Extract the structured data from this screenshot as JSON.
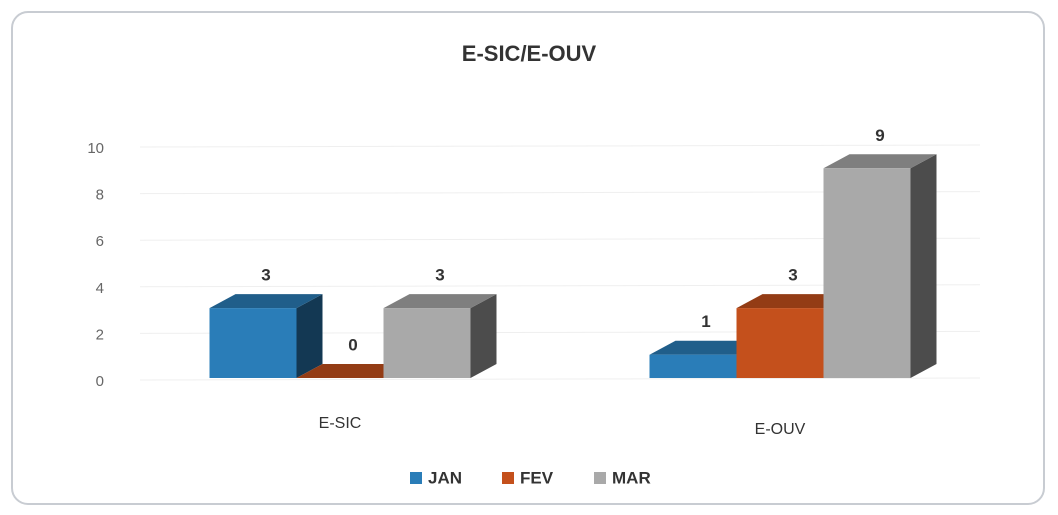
{
  "chart_data": {
    "type": "bar3d",
    "title": "E-SIC/E-OUV",
    "categories": [
      "E-SIC",
      "E-OUV"
    ],
    "series": [
      {
        "name": "JAN",
        "color": "#2a7db8",
        "values": [
          3,
          1
        ]
      },
      {
        "name": "FEV",
        "color": "#c4501c",
        "values": [
          0,
          3
        ]
      },
      {
        "name": "MAR",
        "color": "#a9a9a9",
        "values": [
          3,
          9
        ]
      }
    ],
    "ylim": [
      0,
      10
    ],
    "yticks": [
      0,
      2,
      4,
      6,
      8,
      10
    ],
    "grid": true,
    "legend": "bottom"
  }
}
